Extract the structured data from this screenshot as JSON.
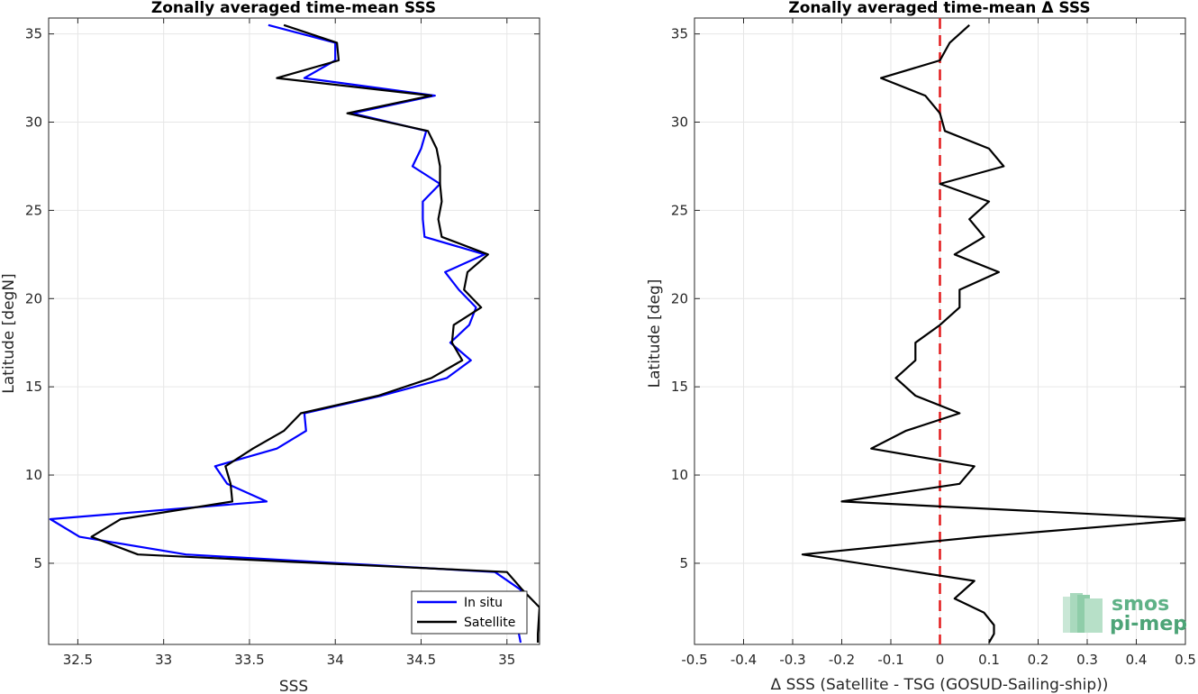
{
  "chart_data": [
    {
      "type": "line",
      "title": "Zonally averaged time-mean SSS",
      "xlabel": "SSS",
      "ylabel": "Latitude [degN]",
      "xlim": [
        32.33,
        35.19
      ],
      "ylim": [
        0.4,
        35.9
      ],
      "xticks": [
        32.5,
        33,
        33.5,
        34,
        34.5,
        35
      ],
      "xtick_labels": [
        "32.5",
        "33",
        "33.5",
        "34",
        "34.5",
        "35"
      ],
      "yticks": [
        5,
        10,
        15,
        20,
        25,
        30,
        35
      ],
      "ytick_labels": [
        "5",
        "10",
        "15",
        "20",
        "25",
        "30",
        "35"
      ],
      "grid": true,
      "legend": "bottom-right",
      "series": [
        {
          "name": "In situ",
          "color": "#0000ff",
          "points": [
            [
              35.08,
              0.5
            ],
            [
              35.07,
              1.0
            ],
            [
              35.1,
              2.5
            ],
            [
              35.08,
              3.5
            ],
            [
              34.93,
              4.5
            ],
            [
              33.13,
              5.5
            ],
            [
              32.51,
              6.5
            ],
            [
              32.34,
              7.5
            ],
            [
              33.6,
              8.5
            ],
            [
              33.37,
              9.5
            ],
            [
              33.3,
              10.5
            ],
            [
              33.66,
              11.5
            ],
            [
              33.83,
              12.5
            ],
            [
              33.82,
              13.5
            ],
            [
              34.27,
              14.5
            ],
            [
              34.65,
              15.5
            ],
            [
              34.79,
              16.5
            ],
            [
              34.67,
              17.5
            ],
            [
              34.78,
              18.5
            ],
            [
              34.82,
              19.5
            ],
            [
              34.72,
              20.5
            ],
            [
              34.64,
              21.5
            ],
            [
              34.87,
              22.5
            ],
            [
              34.52,
              23.5
            ],
            [
              34.51,
              24.5
            ],
            [
              34.51,
              25.5
            ],
            [
              34.61,
              26.5
            ],
            [
              34.45,
              27.5
            ],
            [
              34.5,
              28.5
            ],
            [
              34.53,
              29.5
            ],
            [
              34.1,
              30.5
            ],
            [
              34.58,
              31.5
            ],
            [
              33.82,
              32.5
            ],
            [
              34.0,
              33.5
            ],
            [
              34.0,
              34.5
            ],
            [
              33.61,
              35.5
            ]
          ]
        },
        {
          "name": "Satellite",
          "color": "#000000",
          "points": [
            [
              35.18,
              0.5
            ],
            [
              35.18,
              1.0
            ],
            [
              35.19,
              2.5
            ],
            [
              35.09,
              3.5
            ],
            [
              35.0,
              4.5
            ],
            [
              32.85,
              5.5
            ],
            [
              32.58,
              6.5
            ],
            [
              32.75,
              7.5
            ],
            [
              33.4,
              8.5
            ],
            [
              33.39,
              9.5
            ],
            [
              33.36,
              10.5
            ],
            [
              33.52,
              11.5
            ],
            [
              33.7,
              12.5
            ],
            [
              33.8,
              13.5
            ],
            [
              34.25,
              14.5
            ],
            [
              34.56,
              15.5
            ],
            [
              34.74,
              16.5
            ],
            [
              34.68,
              17.5
            ],
            [
              34.69,
              18.5
            ],
            [
              34.85,
              19.5
            ],
            [
              34.75,
              20.5
            ],
            [
              34.77,
              21.5
            ],
            [
              34.89,
              22.5
            ],
            [
              34.62,
              23.5
            ],
            [
              34.6,
              24.5
            ],
            [
              34.62,
              25.5
            ],
            [
              34.61,
              26.5
            ],
            [
              34.61,
              27.5
            ],
            [
              34.59,
              28.5
            ],
            [
              34.54,
              29.5
            ],
            [
              34.07,
              30.5
            ],
            [
              34.56,
              31.5
            ],
            [
              33.66,
              32.5
            ],
            [
              34.02,
              33.5
            ],
            [
              34.01,
              34.5
            ],
            [
              33.7,
              35.5
            ]
          ]
        }
      ]
    },
    {
      "type": "line",
      "title": "Zonally averaged time-mean Δ SSS",
      "xlabel": "Δ SSS (Satellite - TSG (GOSUD-Sailing-ship))",
      "ylabel": "Latitude [deg]",
      "xlim": [
        -0.5,
        0.5
      ],
      "ylim": [
        0.4,
        35.9
      ],
      "xticks": [
        -0.5,
        -0.4,
        -0.3,
        -0.2,
        -0.1,
        0,
        0.1,
        0.2,
        0.3,
        0.4,
        0.5
      ],
      "xtick_labels": [
        "-0.5",
        "-0.4",
        "-0.3",
        "-0.2",
        "-0.1",
        "0",
        "0.1",
        "0.2",
        "0.3",
        "0.4",
        "0.5"
      ],
      "yticks": [
        5,
        10,
        15,
        20,
        25,
        30,
        35
      ],
      "ytick_labels": [
        "5",
        "10",
        "15",
        "20",
        "25",
        "30",
        "35"
      ],
      "grid": true,
      "reference_line": {
        "x": 0,
        "color": "#e31a1c",
        "style": "dashed"
      },
      "series": [
        {
          "color": "#000000",
          "points": [
            [
              0.1,
              0.5
            ],
            [
              0.11,
              1.0
            ],
            [
              0.11,
              1.5
            ],
            [
              0.09,
              2.2
            ],
            [
              0.03,
              3.0
            ],
            [
              0.07,
              4.0
            ],
            [
              -0.28,
              5.5
            ],
            [
              0.08,
              6.5
            ],
            [
              0.52,
              7.5
            ],
            [
              -0.2,
              8.5
            ],
            [
              0.04,
              9.5
            ],
            [
              0.07,
              10.5
            ],
            [
              -0.14,
              11.5
            ],
            [
              -0.07,
              12.5
            ],
            [
              0.04,
              13.5
            ],
            [
              -0.05,
              14.5
            ],
            [
              -0.09,
              15.5
            ],
            [
              -0.05,
              16.5
            ],
            [
              -0.05,
              17.5
            ],
            [
              0.0,
              18.5
            ],
            [
              0.04,
              19.5
            ],
            [
              0.04,
              20.5
            ],
            [
              0.12,
              21.5
            ],
            [
              0.03,
              22.5
            ],
            [
              0.09,
              23.5
            ],
            [
              0.06,
              24.5
            ],
            [
              0.1,
              25.5
            ],
            [
              0.0,
              26.5
            ],
            [
              0.13,
              27.5
            ],
            [
              0.1,
              28.5
            ],
            [
              0.01,
              29.5
            ],
            [
              0.0,
              30.5
            ],
            [
              -0.03,
              31.5
            ],
            [
              -0.12,
              32.5
            ],
            [
              0.0,
              33.5
            ],
            [
              0.02,
              34.5
            ],
            [
              0.06,
              35.5
            ]
          ]
        }
      ]
    }
  ],
  "logo": {
    "line1": "smos",
    "line2": "pi-mep"
  }
}
